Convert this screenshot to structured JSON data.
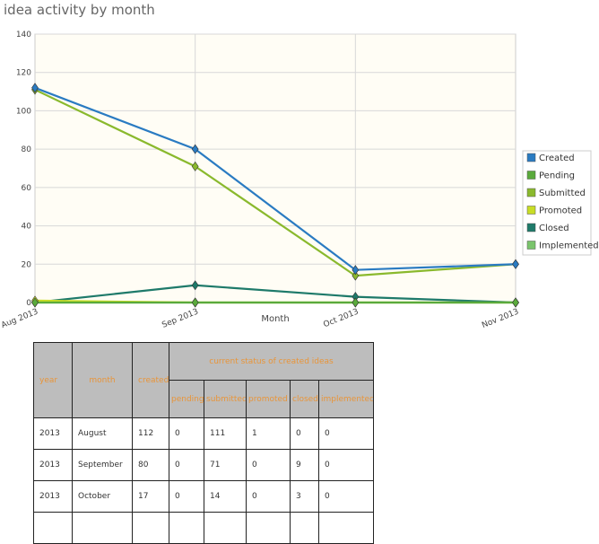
{
  "title": "idea activity by month",
  "chart_data": {
    "type": "line",
    "x": [
      "Aug 2013",
      "Sep 2013",
      "Oct 2013",
      "Nov 2013"
    ],
    "xlabel": "Month",
    "ylabel": "",
    "ylim": [
      0,
      140
    ],
    "yticks": [
      0,
      20,
      40,
      60,
      80,
      100,
      120,
      140
    ],
    "grid": true,
    "legend_position": "right",
    "series": [
      {
        "name": "Created",
        "values": [
          112,
          80,
          17,
          20
        ],
        "color": "#2a7bc2"
      },
      {
        "name": "Pending",
        "values": [
          0,
          0,
          0,
          0
        ],
        "color": "#5aaa3c"
      },
      {
        "name": "Submitted",
        "values": [
          111,
          71,
          14,
          20
        ],
        "color": "#8ab92d"
      },
      {
        "name": "Promoted",
        "values": [
          1,
          0,
          0,
          0
        ],
        "color": "#c8dd25"
      },
      {
        "name": "Closed",
        "values": [
          0,
          9,
          3,
          0
        ],
        "color": "#1e7a6a"
      },
      {
        "name": "Implemented",
        "values": [
          0,
          0,
          0,
          0
        ],
        "color": "#7ac46c"
      }
    ],
    "plot_background": "#fffdf5"
  },
  "table": {
    "header_group": "current status of created ideas",
    "columns": [
      "year",
      "month",
      "created",
      "pending",
      "submitted",
      "promoted",
      "closed",
      "implemented"
    ],
    "rows": [
      [
        "2013",
        "August",
        "112",
        "0",
        "111",
        "1",
        "0",
        "0"
      ],
      [
        "2013",
        "September",
        "80",
        "0",
        "71",
        "0",
        "9",
        "0"
      ],
      [
        "2013",
        "October",
        "17",
        "0",
        "14",
        "0",
        "3",
        "0"
      ],
      [
        "",
        "",
        "",
        "",
        "",
        "",
        "",
        ""
      ]
    ]
  }
}
